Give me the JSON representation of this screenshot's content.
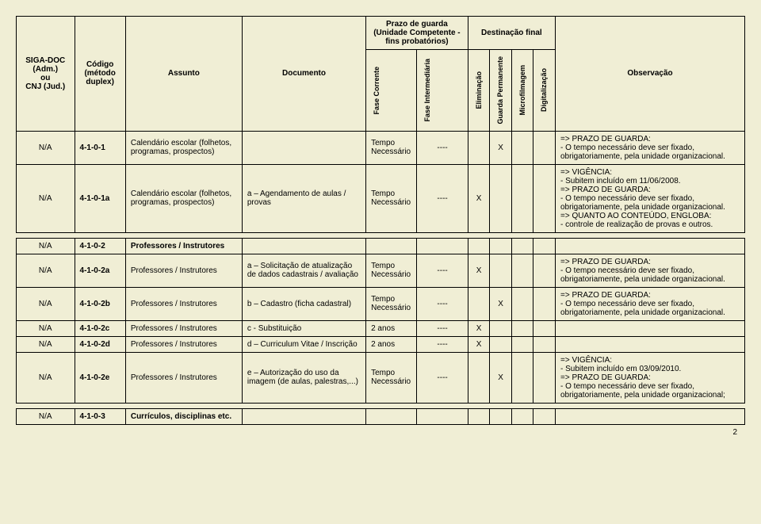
{
  "header": {
    "siga": "SIGA-DOC (Adm.)\nou\nCNJ (Jud.)",
    "codigo": "Código\n(método\nduplex)",
    "assunto": "Assunto",
    "documento": "Documento",
    "prazo_guarda": "Prazo de guarda\n(Unidade Competente -\nfins probatórios)",
    "destinacao": "Destinação final",
    "observacao": "Observação",
    "fase_corrente": "Fase\nCorrente",
    "fase_intermediaria": "Fase\nIntermediária",
    "eliminacao": "Eliminação",
    "guarda_permanente": "Guarda\nPermanente",
    "microfilmagem": "Microfilmagem",
    "digitalizacao": "Digitalização"
  },
  "rows": [
    {
      "siga": "N/A",
      "codigo": "4-1-0-1",
      "assunto": "Calendário escolar (folhetos, programas, prospectos)",
      "documento": "",
      "fase_corrente": "Tempo\nNecessário",
      "fase_intermediaria": "----",
      "eliminacao": "",
      "guarda_permanente": "X",
      "microfilmagem": "",
      "digitalizacao": "",
      "observacao": "=> PRAZO DE GUARDA:\n- O tempo necessário deve ser fixado, obrigatoriamente, pela unidade organizacional."
    },
    {
      "siga": "N/A",
      "codigo": "4-1-0-1a",
      "assunto": "Calendário escolar (folhetos, programas, prospectos)",
      "documento": "a – Agendamento de aulas / provas",
      "fase_corrente": "Tempo\nNecessário",
      "fase_intermediaria": "----",
      "eliminacao": "X",
      "guarda_permanente": "",
      "microfilmagem": "",
      "digitalizacao": "",
      "observacao": "=> VIGÊNCIA:\n- Subitem incluído em 11/06/2008.\n=> PRAZO DE GUARDA:\n- O tempo necessário deve ser fixado, obrigatoriamente, pela unidade organizacional.\n=> QUANTO AO CONTEÚDO, ENGLOBA:\n- controle de realização de provas e outros."
    },
    {
      "siga": "N/A",
      "codigo": "4-1-0-2",
      "assunto": "Professores / Instrutores",
      "documento": "",
      "fase_corrente": "",
      "fase_intermediaria": "",
      "eliminacao": "",
      "guarda_permanente": "",
      "microfilmagem": "",
      "digitalizacao": "",
      "observacao": "",
      "bold_assunto": true
    },
    {
      "siga": "N/A",
      "codigo": "4-1-0-2a",
      "assunto": "Professores / Instrutores",
      "documento": "a – Solicitação de atualização de dados cadastrais / avaliação",
      "fase_corrente": "Tempo\nNecessário",
      "fase_intermediaria": "----",
      "eliminacao": "X",
      "guarda_permanente": "",
      "microfilmagem": "",
      "digitalizacao": "",
      "observacao": "=> PRAZO DE GUARDA:\n- O tempo necessário deve ser fixado, obrigatoriamente, pela unidade organizacional."
    },
    {
      "siga": "N/A",
      "codigo": "4-1-0-2b",
      "assunto": "Professores / Instrutores",
      "documento": "b – Cadastro (ficha cadastral)",
      "fase_corrente": "Tempo\nNecessário",
      "fase_intermediaria": "----",
      "eliminacao": "",
      "guarda_permanente": "X",
      "microfilmagem": "",
      "digitalizacao": "",
      "observacao": "=> PRAZO DE GUARDA:\n- O tempo necessário deve ser fixado, obrigatoriamente, pela unidade organizacional."
    },
    {
      "siga": "N/A",
      "codigo": "4-1-0-2c",
      "assunto": "Professores / Instrutores",
      "documento": "c - Substituição",
      "fase_corrente": "2 anos",
      "fase_intermediaria": "----",
      "eliminacao": "X",
      "guarda_permanente": "",
      "microfilmagem": "",
      "digitalizacao": "",
      "observacao": ""
    },
    {
      "siga": "N/A",
      "codigo": "4-1-0-2d",
      "assunto": "Professores / Instrutores",
      "documento": "d – Curriculum Vitae / Inscrição",
      "fase_corrente": "2 anos",
      "fase_intermediaria": "----",
      "eliminacao": "X",
      "guarda_permanente": "",
      "microfilmagem": "",
      "digitalizacao": "",
      "observacao": ""
    },
    {
      "siga": "N/A",
      "codigo": "4-1-0-2e",
      "assunto": "Professores / Instrutores",
      "documento": "e – Autorização do uso da imagem (de aulas, palestras,...)",
      "fase_corrente": "Tempo\nNecessário",
      "fase_intermediaria": "----",
      "eliminacao": "",
      "guarda_permanente": "X",
      "microfilmagem": "",
      "digitalizacao": "",
      "observacao": "=> VIGÊNCIA:\n- Subitem incluído em 03/09/2010.\n=> PRAZO DE GUARDA:\n- O tempo necessário deve ser fixado, obrigatoriamente, pela unidade organizacional;"
    },
    {
      "siga": "N/A",
      "codigo": "4-1-0-3",
      "assunto": "Currículos, disciplinas etc.",
      "documento": "",
      "fase_corrente": "",
      "fase_intermediaria": "",
      "eliminacao": "",
      "guarda_permanente": "",
      "microfilmagem": "",
      "digitalizacao": "",
      "observacao": "",
      "bold_assunto": true
    }
  ],
  "page_number": "2",
  "colors": {
    "background": "#f0eed5",
    "border": "#000000",
    "text": "#000000"
  },
  "col_widths_pct": [
    8,
    7,
    16,
    17,
    7,
    7,
    3,
    3,
    3,
    3,
    26
  ]
}
